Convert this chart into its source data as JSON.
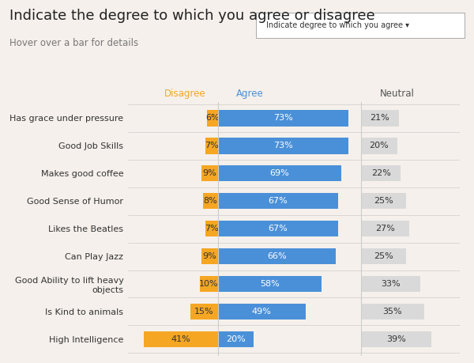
{
  "title": "Indicate the degree to which you agree or disagree",
  "subtitle": "Hover over a bar for details",
  "dropdown_label": "Indicate degree to which you agree ▾",
  "categories": [
    "Has grace under pressure",
    "Good Job Skills",
    "Makes good coffee",
    "Good Sense of Humor",
    "Likes the Beatles",
    "Can Play Jazz",
    "Good Ability to lift heavy\nobjects",
    "Is Kind to animals",
    "High Intelligence"
  ],
  "disagree": [
    6,
    7,
    9,
    8,
    7,
    9,
    10,
    15,
    41
  ],
  "agree": [
    73,
    73,
    69,
    67,
    67,
    66,
    58,
    49,
    20
  ],
  "neutral": [
    21,
    20,
    22,
    25,
    27,
    25,
    33,
    35,
    39
  ],
  "disagree_color": "#f5a623",
  "agree_color": "#4a90d9",
  "neutral_color": "#d9d9d9",
  "bg_color": "#f5f0eb",
  "title_fontsize": 13,
  "subtitle_fontsize": 8.5,
  "label_fontsize": 8,
  "bar_fontsize": 8,
  "neutral_fontsize": 8,
  "header_disagree_color": "#f5a623",
  "header_agree_color": "#4a90d9",
  "header_neutral_color": "#555555",
  "divider_color": "#cccccc",
  "row_bg_alt": "#ede8e2"
}
